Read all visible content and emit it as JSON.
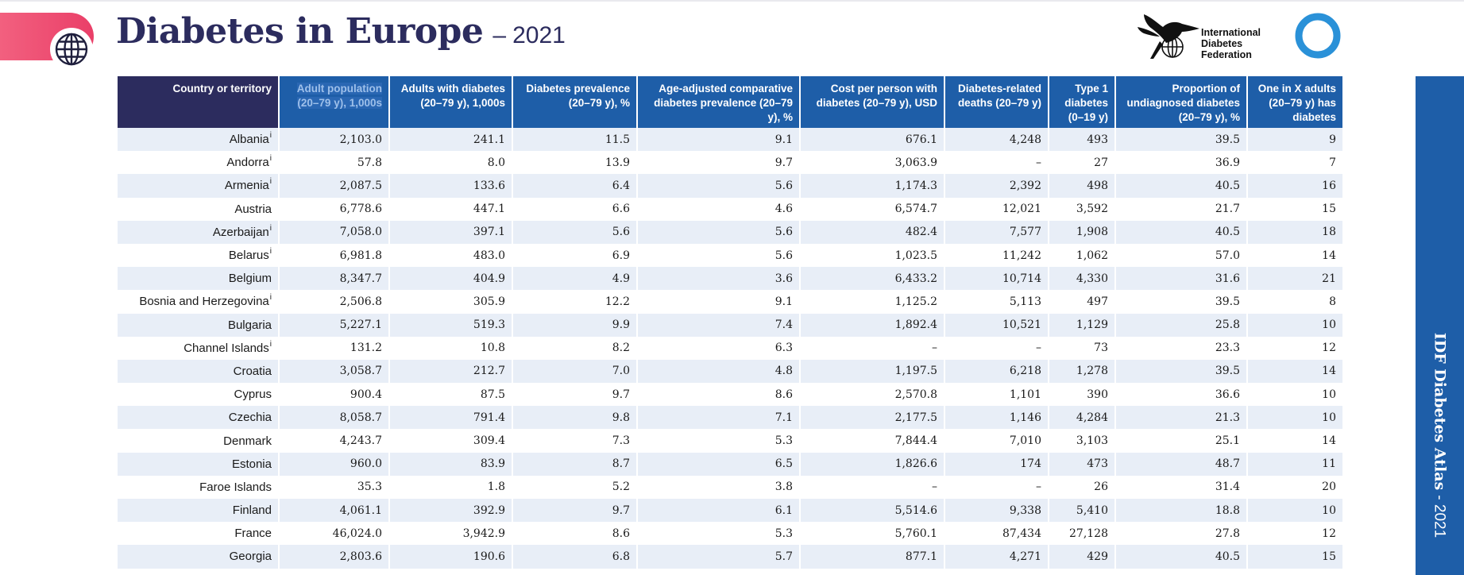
{
  "header": {
    "title": "Diabetes in Europe",
    "dash": "–",
    "year": "2021",
    "organization_lines": [
      "International",
      "Diabetes",
      "Federation"
    ]
  },
  "side_label": {
    "atlas": "IDF Diabetes Atlas",
    "year": "- 2021"
  },
  "table": {
    "columns": [
      "Country or territory",
      "Adult population (20–79 y), 1,000s",
      "Adults with diabetes (20–79 y), 1,000s",
      "Diabetes prevalence (20–79 y), %",
      "Age-adjusted comparative diabetes prevalence (20–79 y), %",
      "Cost per person with diabetes (20–79 y), USD",
      "Diabetes-related deaths (20–79 y)",
      "Type 1 diabetes (0–19 y)",
      "Proportion of undiagnosed diabetes (20–79 y), %",
      "One in X adults (20–79 y) has diabetes"
    ],
    "rows": [
      {
        "country": "Albania",
        "note": "i",
        "cells": [
          "2,103.0",
          "241.1",
          "11.5",
          "9.1",
          "676.1",
          "4,248",
          "493",
          "39.5",
          "9"
        ]
      },
      {
        "country": "Andorra",
        "note": "i",
        "cells": [
          "57.8",
          "8.0",
          "13.9",
          "9.7",
          "3,063.9",
          "–",
          "27",
          "36.9",
          "7"
        ]
      },
      {
        "country": "Armenia",
        "note": "i",
        "cells": [
          "2,087.5",
          "133.6",
          "6.4",
          "5.6",
          "1,174.3",
          "2,392",
          "498",
          "40.5",
          "16"
        ]
      },
      {
        "country": "Austria",
        "note": "",
        "cells": [
          "6,778.6",
          "447.1",
          "6.6",
          "4.6",
          "6,574.7",
          "12,021",
          "3,592",
          "21.7",
          "15"
        ]
      },
      {
        "country": "Azerbaijan",
        "note": "i",
        "cells": [
          "7,058.0",
          "397.1",
          "5.6",
          "5.6",
          "482.4",
          "7,577",
          "1,908",
          "40.5",
          "18"
        ]
      },
      {
        "country": "Belarus",
        "note": "i",
        "cells": [
          "6,981.8",
          "483.0",
          "6.9",
          "5.6",
          "1,023.5",
          "11,242",
          "1,062",
          "57.0",
          "14"
        ]
      },
      {
        "country": "Belgium",
        "note": "",
        "cells": [
          "8,347.7",
          "404.9",
          "4.9",
          "3.6",
          "6,433.2",
          "10,714",
          "4,330",
          "31.6",
          "21"
        ]
      },
      {
        "country": "Bosnia and Herzegovina",
        "note": "i",
        "cells": [
          "2,506.8",
          "305.9",
          "12.2",
          "9.1",
          "1,125.2",
          "5,113",
          "497",
          "39.5",
          "8"
        ]
      },
      {
        "country": "Bulgaria",
        "note": "",
        "cells": [
          "5,227.1",
          "519.3",
          "9.9",
          "7.4",
          "1,892.4",
          "10,521",
          "1,129",
          "25.8",
          "10"
        ]
      },
      {
        "country": "Channel Islands",
        "note": "i",
        "cells": [
          "131.2",
          "10.8",
          "8.2",
          "6.3",
          "–",
          "–",
          "73",
          "23.3",
          "12"
        ]
      },
      {
        "country": "Croatia",
        "note": "",
        "cells": [
          "3,058.7",
          "212.7",
          "7.0",
          "4.8",
          "1,197.5",
          "6,218",
          "1,278",
          "39.5",
          "14"
        ]
      },
      {
        "country": "Cyprus",
        "note": "",
        "cells": [
          "900.4",
          "87.5",
          "9.7",
          "8.6",
          "2,570.8",
          "1,101",
          "390",
          "36.6",
          "10"
        ]
      },
      {
        "country": "Czechia",
        "note": "",
        "cells": [
          "8,058.7",
          "791.4",
          "9.8",
          "7.1",
          "2,177.5",
          "1,146",
          "4,284",
          "21.3",
          "10"
        ]
      },
      {
        "country": "Denmark",
        "note": "",
        "cells": [
          "4,243.7",
          "309.4",
          "7.3",
          "5.3",
          "7,844.4",
          "7,010",
          "3,103",
          "25.1",
          "14"
        ]
      },
      {
        "country": "Estonia",
        "note": "",
        "cells": [
          "960.0",
          "83.9",
          "8.7",
          "6.5",
          "1,826.6",
          "174",
          "473",
          "48.7",
          "11"
        ]
      },
      {
        "country": "Faroe Islands",
        "note": "",
        "cells": [
          "35.3",
          "1.8",
          "5.2",
          "3.8",
          "–",
          "–",
          "26",
          "31.4",
          "20"
        ]
      },
      {
        "country": "Finland",
        "note": "",
        "cells": [
          "4,061.1",
          "392.9",
          "9.7",
          "6.1",
          "5,514.6",
          "9,338",
          "5,410",
          "18.8",
          "10"
        ]
      },
      {
        "country": "France",
        "note": "",
        "cells": [
          "46,024.0",
          "3,942.9",
          "8.6",
          "5.3",
          "5,760.1",
          "87,434",
          "27,128",
          "27.8",
          "12"
        ]
      },
      {
        "country": "Georgia",
        "note": "",
        "cells": [
          "2,803.6",
          "190.6",
          "6.8",
          "5.7",
          "877.1",
          "4,271",
          "429",
          "40.5",
          "15"
        ]
      }
    ]
  },
  "colors": {
    "navy": "#2c2c5e",
    "blue": "#1e5ea8",
    "pink": "#ea3f68",
    "row_stripe": "#e8eef7"
  }
}
